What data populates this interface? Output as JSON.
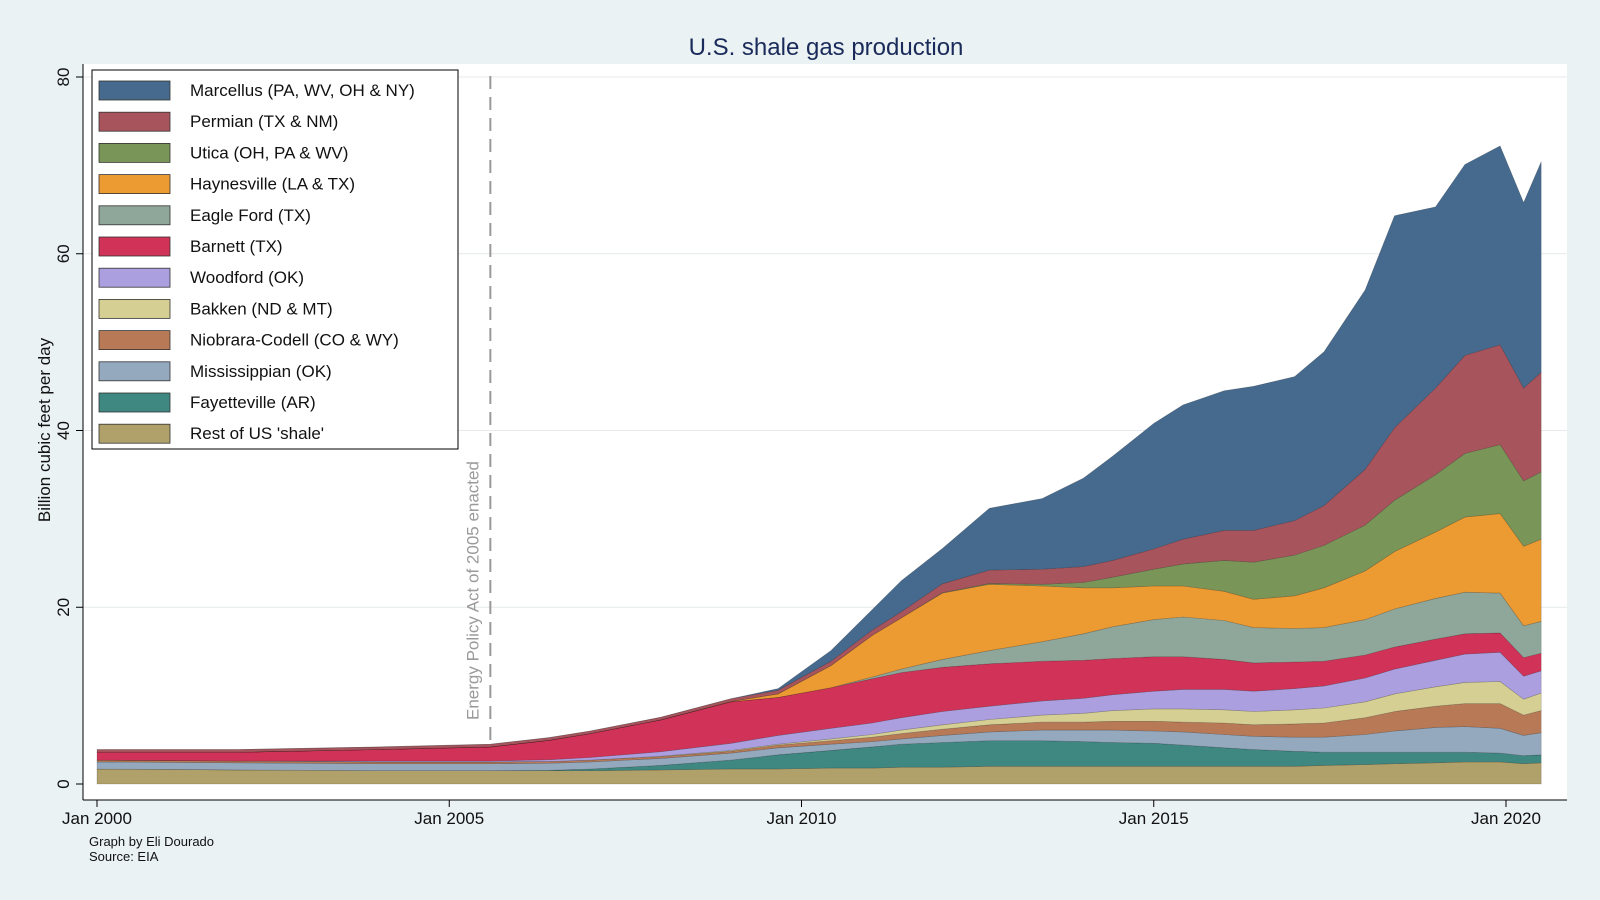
{
  "chart_data": {
    "type": "area",
    "stacked": true,
    "title": "U.S. shale gas production",
    "ylabel": "Billion cubic feet per day",
    "xlabel": "",
    "ylim": [
      0,
      80
    ],
    "xlim": [
      "2000-01",
      "2020-07"
    ],
    "yticks": [
      0,
      20,
      40,
      60,
      80
    ],
    "xticks": [
      {
        "date": "2000-01",
        "label": "Jan 2000"
      },
      {
        "date": "2005-01",
        "label": "Jan 2005"
      },
      {
        "date": "2010-01",
        "label": "Jan 2010"
      },
      {
        "date": "2015-01",
        "label": "Jan 2015"
      },
      {
        "date": "2020-01",
        "label": "Jan 2020"
      }
    ],
    "grid": true,
    "legend_position": "top-left",
    "annotation": {
      "text": "Energy Policy Act of 2005 enacted",
      "date": "2005-08"
    },
    "notes": [
      "Graph by Eli Dourado",
      "Source: EIA"
    ],
    "x": [
      "2000-01",
      "2002-01",
      "2004-01",
      "2005-08",
      "2006-06",
      "2007-01",
      "2008-01",
      "2009-01",
      "2009-09",
      "2010-06",
      "2011-01",
      "2011-06",
      "2012-01",
      "2012-09",
      "2013-06",
      "2014-01",
      "2014-06",
      "2015-01",
      "2015-06",
      "2016-01",
      "2016-06",
      "2017-01",
      "2017-06",
      "2018-01",
      "2018-06",
      "2019-01",
      "2019-06",
      "2019-12",
      "2020-04",
      "2020-07"
    ],
    "series": [
      {
        "name": "Rest of US 'shale'",
        "color": "#b0a06a",
        "values": [
          1.7,
          1.6,
          1.5,
          1.5,
          1.5,
          1.5,
          1.6,
          1.7,
          1.7,
          1.8,
          1.8,
          1.9,
          1.9,
          2.0,
          2.0,
          2.0,
          2.0,
          2.0,
          2.0,
          2.0,
          2.0,
          2.0,
          2.1,
          2.2,
          2.3,
          2.4,
          2.5,
          2.5,
          2.3,
          2.4
        ]
      },
      {
        "name": "Fayetteville (AR)",
        "color": "#3f8781",
        "values": [
          0.0,
          0.0,
          0.0,
          0.0,
          0.05,
          0.2,
          0.5,
          1.0,
          1.6,
          2.0,
          2.4,
          2.6,
          2.8,
          2.9,
          2.9,
          2.8,
          2.7,
          2.6,
          2.4,
          2.1,
          1.9,
          1.7,
          1.5,
          1.4,
          1.3,
          1.2,
          1.1,
          1.0,
          0.9,
          0.9
        ]
      },
      {
        "name": "Mississippian (OK)",
        "color": "#94a8be",
        "values": [
          0.8,
          0.8,
          0.8,
          0.8,
          0.8,
          0.8,
          0.8,
          0.8,
          0.8,
          0.7,
          0.6,
          0.6,
          0.8,
          1.0,
          1.2,
          1.3,
          1.4,
          1.4,
          1.5,
          1.5,
          1.5,
          1.6,
          1.7,
          2.0,
          2.4,
          2.8,
          2.9,
          2.8,
          2.3,
          2.5
        ]
      },
      {
        "name": "Niobrara-Codell (CO & WY)",
        "color": "#b87a56",
        "values": [
          0.2,
          0.2,
          0.2,
          0.2,
          0.2,
          0.2,
          0.2,
          0.2,
          0.3,
          0.4,
          0.5,
          0.6,
          0.7,
          0.8,
          0.9,
          0.9,
          1.0,
          1.1,
          1.1,
          1.3,
          1.3,
          1.5,
          1.6,
          1.9,
          2.2,
          2.4,
          2.6,
          2.8,
          2.3,
          2.5
        ]
      },
      {
        "name": "Bakken (ND & MT)",
        "color": "#d6cf94",
        "values": [
          0.0,
          0.0,
          0.0,
          0.0,
          0.0,
          0.0,
          0.05,
          0.1,
          0.1,
          0.2,
          0.3,
          0.4,
          0.5,
          0.6,
          0.8,
          1.0,
          1.2,
          1.4,
          1.5,
          1.5,
          1.5,
          1.6,
          1.7,
          1.8,
          2.0,
          2.2,
          2.4,
          2.5,
          1.8,
          2.0
        ]
      },
      {
        "name": "Woodford (OK)",
        "color": "#ab9fdf",
        "values": [
          0.0,
          0.0,
          0.1,
          0.1,
          0.2,
          0.3,
          0.5,
          0.8,
          1.0,
          1.2,
          1.3,
          1.4,
          1.5,
          1.5,
          1.6,
          1.7,
          1.8,
          2.0,
          2.2,
          2.3,
          2.3,
          2.4,
          2.5,
          2.7,
          2.8,
          3.0,
          3.2,
          3.3,
          2.6,
          2.5
        ]
      },
      {
        "name": "Barnett (TX)",
        "color": "#d13358",
        "values": [
          0.9,
          1.0,
          1.3,
          1.6,
          2.2,
          2.7,
          3.6,
          4.7,
          4.3,
          4.6,
          5.0,
          5.1,
          5.0,
          4.8,
          4.5,
          4.3,
          4.1,
          3.9,
          3.7,
          3.4,
          3.2,
          3.0,
          2.8,
          2.6,
          2.5,
          2.4,
          2.3,
          2.2,
          2.1,
          2.0
        ]
      },
      {
        "name": "Eagle Ford (TX)",
        "color": "#8fa69a",
        "values": [
          0.0,
          0.0,
          0.0,
          0.0,
          0.0,
          0.0,
          0.0,
          0.0,
          0.0,
          0.0,
          0.2,
          0.4,
          0.9,
          1.5,
          2.2,
          3.0,
          3.6,
          4.2,
          4.5,
          4.4,
          4.0,
          3.8,
          3.8,
          4.0,
          4.3,
          4.6,
          4.7,
          4.5,
          3.6,
          3.6
        ]
      },
      {
        "name": "Haynesville (LA & TX)",
        "color": "#ec9a32",
        "values": [
          0.0,
          0.0,
          0.0,
          0.0,
          0.0,
          0.0,
          0.0,
          0.05,
          0.4,
          2.5,
          4.7,
          5.8,
          7.5,
          7.5,
          6.3,
          5.2,
          4.4,
          3.8,
          3.5,
          3.3,
          3.2,
          3.7,
          4.5,
          5.5,
          6.5,
          7.5,
          8.5,
          9.0,
          9.0,
          9.3
        ]
      },
      {
        "name": "Utica (OH, PA & WV)",
        "color": "#7a9558",
        "values": [
          0.0,
          0.0,
          0.0,
          0.0,
          0.0,
          0.0,
          0.0,
          0.0,
          0.0,
          0.0,
          0.0,
          0.0,
          0.05,
          0.1,
          0.2,
          0.6,
          1.2,
          1.9,
          2.5,
          3.5,
          4.2,
          4.6,
          4.8,
          5.2,
          5.8,
          6.5,
          7.2,
          7.8,
          7.4,
          7.6
        ]
      },
      {
        "name": "Permian (TX & NM)",
        "color": "#a8545d",
        "values": [
          0.3,
          0.3,
          0.3,
          0.3,
          0.3,
          0.3,
          0.3,
          0.3,
          0.4,
          0.5,
          0.6,
          0.7,
          1.0,
          1.5,
          1.7,
          1.8,
          1.9,
          2.3,
          2.8,
          3.4,
          3.6,
          3.9,
          4.5,
          6.3,
          8.2,
          9.8,
          11.1,
          11.3,
          10.5,
          11.3
        ]
      },
      {
        "name": "Marcellus (PA, WV, OH & NY)",
        "color": "#466a8e",
        "values": [
          0.0,
          0.0,
          0.0,
          0.0,
          0.0,
          0.0,
          0.0,
          0.0,
          0.2,
          1.2,
          2.3,
          3.5,
          4.0,
          7.0,
          8.0,
          10.0,
          11.8,
          14.2,
          15.2,
          15.8,
          16.3,
          16.3,
          17.4,
          20.3,
          24.0,
          20.5,
          21.6,
          22.5,
          21.0,
          23.8
        ]
      }
    ],
    "legend_order": [
      "Marcellus (PA, WV, OH & NY)",
      "Permian (TX & NM)",
      "Utica (OH, PA & WV)",
      "Haynesville (LA & TX)",
      "Eagle Ford (TX)",
      "Barnett (TX)",
      "Woodford (OK)",
      "Bakken (ND & MT)",
      "Niobrara-Codell (CO & WY)",
      "Mississippian (OK)",
      "Fayetteville (AR)",
      "Rest of US 'shale'"
    ]
  }
}
